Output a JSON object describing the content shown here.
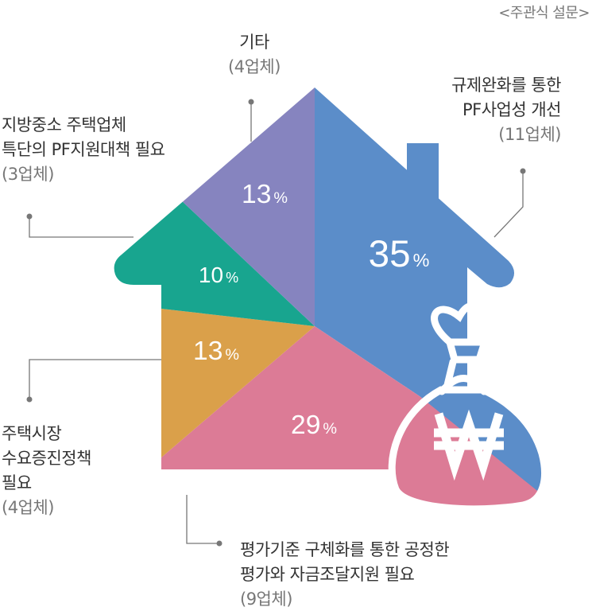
{
  "note": "<주관식 설문>",
  "colors": {
    "blue": "#5b8dc9",
    "purple": "#8684bf",
    "green": "#18a58f",
    "orange": "#daa04a",
    "pink": "#dc7b96",
    "leader": "#777777"
  },
  "icons": {
    "bag": "money-bag-icon",
    "won": "won-sign-icon"
  },
  "chart_data": {
    "type": "pie",
    "slices": [
      {
        "label_lines": [
          "규제완화를 통한",
          "PF사업성 개선"
        ],
        "count": "(11업체)",
        "value": 35,
        "color": "#5b8dc9"
      },
      {
        "label_lines": [
          "평가기준 구체화를 통한 공정한",
          "평가와 자금조달지원 필요"
        ],
        "count": "(9업체)",
        "value": 29,
        "color": "#dc7b96"
      },
      {
        "label_lines": [
          "주택시장",
          "수요증진정책",
          "필요"
        ],
        "count": "(4업체)",
        "value": 13,
        "color": "#daa04a"
      },
      {
        "label_lines": [
          "지방중소 주택업체",
          "특단의 PF지원대책 필요"
        ],
        "count": "(3업체)",
        "value": 10,
        "color": "#18a58f"
      },
      {
        "label_lines": [
          "기타"
        ],
        "count": "(4업체)",
        "value": 13,
        "color": "#8684bf"
      }
    ],
    "unit": "%"
  }
}
